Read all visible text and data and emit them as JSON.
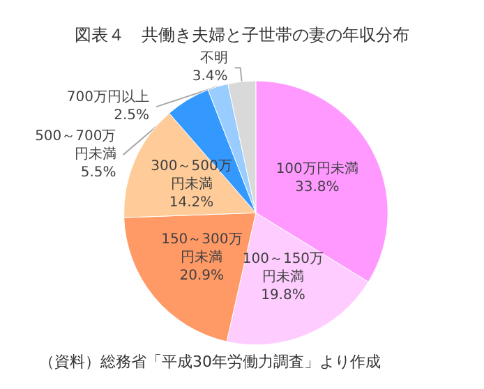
{
  "chart_data": {
    "type": "pie",
    "title": "図表４　共働き夫婦と子世帯の妻の年収分布",
    "categories": [
      "100万円未満",
      "100～150万円未満",
      "150～300万円未満",
      "300～500万円未満",
      "500～700万円未満",
      "700万円以上",
      "不明"
    ],
    "values": [
      33.8,
      19.8,
      20.9,
      14.2,
      5.5,
      2.5,
      3.4
    ],
    "value_labels": [
      "33.8%",
      "19.8%",
      "20.9%",
      "14.2%",
      "5.5%",
      "2.5%",
      "3.4%"
    ],
    "colors": [
      "#ff99ff",
      "#ffccff",
      "#ff9966",
      "#ffcc99",
      "#3399ff",
      "#99ccff",
      "#d9d9d9"
    ],
    "legend": false,
    "annotations": [
      "（資料）総務省「平成30年労働力調査」より作成"
    ]
  }
}
